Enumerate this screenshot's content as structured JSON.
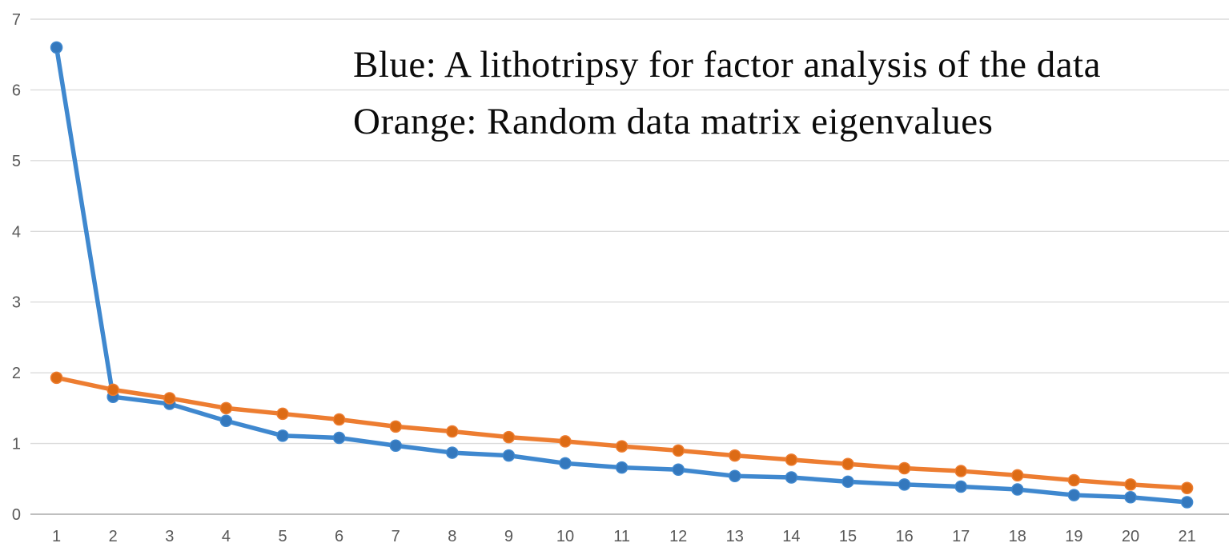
{
  "annotation": {
    "line1": "Blue: A lithotripsy for factor analysis of the data",
    "line2": "Orange: Random data matrix eigenvalues"
  },
  "chart_data": {
    "type": "line",
    "title": "",
    "xlabel": "",
    "ylabel": "",
    "x": [
      1,
      2,
      3,
      4,
      5,
      6,
      7,
      8,
      9,
      10,
      11,
      12,
      13,
      14,
      15,
      16,
      17,
      18,
      19,
      20,
      21
    ],
    "series": [
      {
        "name": "Blue",
        "description": "A lithotripsy for factor analysis of the data",
        "color": "#3F88CF",
        "marker_color": "#3478BD",
        "values": [
          6.6,
          1.66,
          1.56,
          1.32,
          1.11,
          1.08,
          0.97,
          0.87,
          0.83,
          0.72,
          0.66,
          0.63,
          0.54,
          0.52,
          0.46,
          0.42,
          0.39,
          0.35,
          0.27,
          0.24,
          0.17
        ]
      },
      {
        "name": "Orange",
        "description": "Random data matrix eigenvalues",
        "color": "#ED7D31",
        "marker_color": "#DD6B15",
        "values": [
          1.93,
          1.76,
          1.64,
          1.5,
          1.42,
          1.34,
          1.24,
          1.17,
          1.09,
          1.03,
          0.96,
          0.9,
          0.83,
          0.77,
          0.71,
          0.65,
          0.61,
          0.55,
          0.48,
          0.42,
          0.37
        ]
      }
    ],
    "ylim": [
      0,
      7
    ],
    "yticks": [
      0,
      1,
      2,
      3,
      4,
      5,
      6,
      7
    ],
    "xticks": [
      1,
      2,
      3,
      4,
      5,
      6,
      7,
      8,
      9,
      10,
      11,
      12,
      13,
      14,
      15,
      16,
      17,
      18,
      19,
      20,
      21
    ],
    "grid": true,
    "legend_position": "text-annotation-top-center"
  },
  "axis_style": {
    "tick_color": "#595959",
    "grid_color": "#DBDBDB",
    "zero_line_color": "#BFBFBF"
  }
}
